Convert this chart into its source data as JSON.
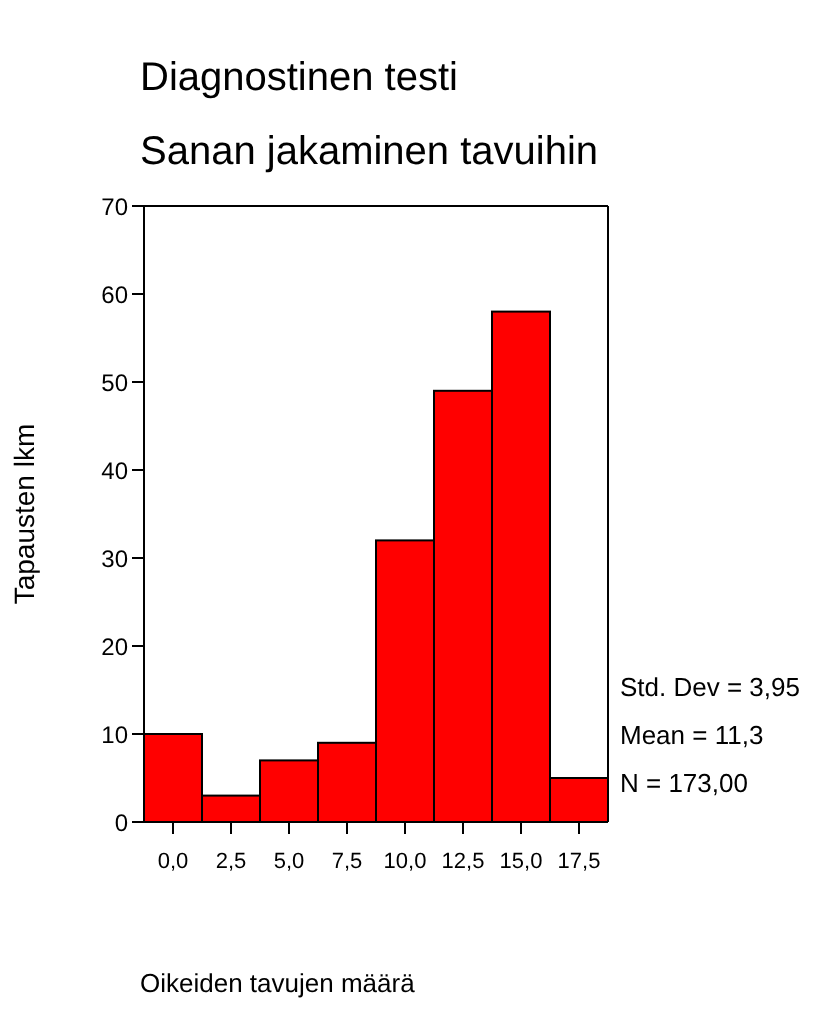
{
  "chart_data": {
    "type": "histogram",
    "title": "Diagnostinen testi",
    "subtitle": "Sanan jakaminen tavuihin",
    "xlabel": "Oikeiden tavujen määrä",
    "ylabel": "Tapausten lkm",
    "bins": [
      -1.25,
      1.25,
      3.75,
      6.25,
      8.75,
      11.25,
      13.75,
      16.25,
      18.75
    ],
    "values": [
      10,
      3,
      7,
      9,
      32,
      49,
      58,
      5
    ],
    "color": "#ff0000",
    "xlim": [
      -1.25,
      18.75
    ],
    "xticks": [
      {
        "value": 0,
        "label": "0,0"
      },
      {
        "value": 2.5,
        "label": "2,5"
      },
      {
        "value": 5,
        "label": "5,0"
      },
      {
        "value": 7.5,
        "label": "7,5"
      },
      {
        "value": 10,
        "label": "10,0"
      },
      {
        "value": 12.5,
        "label": "12,5"
      },
      {
        "value": 15,
        "label": "15,0"
      },
      {
        "value": 17.5,
        "label": "17,5"
      }
    ],
    "ylim": [
      0,
      70
    ],
    "yticks": [
      0,
      10,
      20,
      30,
      40,
      50,
      60,
      70
    ],
    "annotations": [
      "Std. Dev = 3,95",
      "Mean = 11,3",
      "N = 173,00"
    ]
  }
}
